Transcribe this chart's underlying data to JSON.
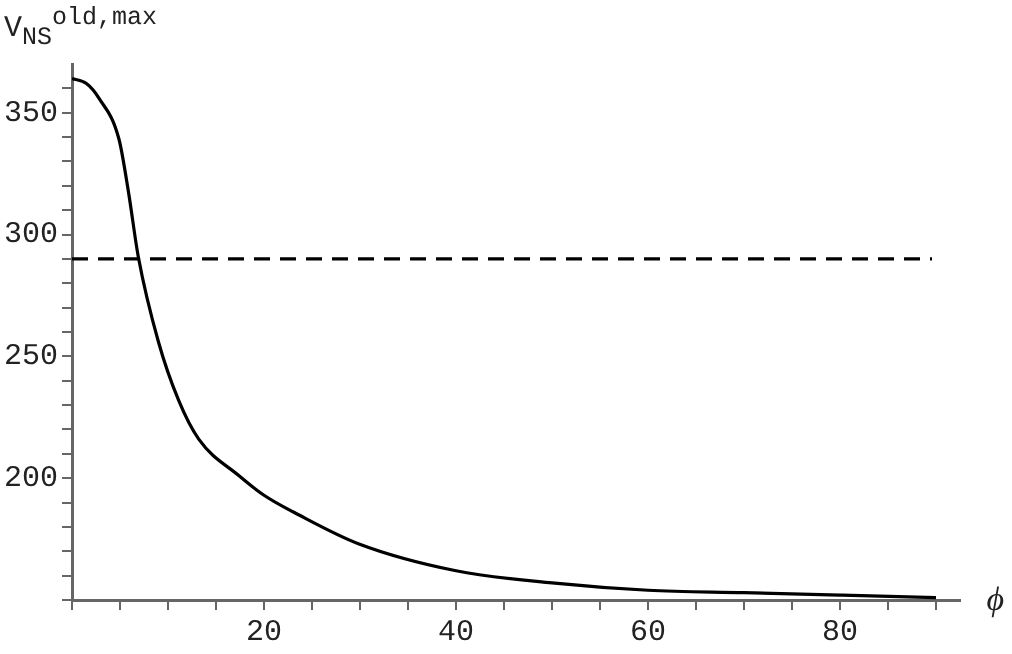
{
  "chart_data": {
    "type": "line",
    "ylabel": "V$_{NS}$$^{old,max}$",
    "xlabel": "ϕ",
    "x": [
      0,
      1.5,
      2.8,
      4.9,
      5.9,
      6.9,
      9.0,
      11.1,
      13.2,
      17.4,
      20,
      23.6,
      29.9,
      40,
      50,
      60,
      70,
      80,
      90
    ],
    "series": [
      {
        "color": "#000000",
        "values": [
          364,
          362,
          356,
          339,
          317,
          291,
          256,
          232,
          216,
          201,
          193,
          185,
          173,
          162,
          157,
          154,
          153,
          152,
          151
        ]
      }
    ],
    "xlim": [
      0,
      92.5
    ],
    "ylim": [
      150,
      370
    ],
    "xticks": [
      {
        "value": 0,
        "label": null
      },
      {
        "value": 5,
        "label": null
      },
      {
        "value": 10,
        "label": null
      },
      {
        "value": 15,
        "label": null
      },
      20,
      {
        "value": 25,
        "label": null
      },
      {
        "value": 30,
        "label": null
      },
      {
        "value": 35,
        "label": null
      },
      40,
      {
        "value": 45,
        "label": null
      },
      {
        "value": 50,
        "label": null
      },
      {
        "value": 55,
        "label": null
      },
      60,
      {
        "value": 65,
        "label": null
      },
      {
        "value": 70,
        "label": null
      },
      {
        "value": 75,
        "label": null
      },
      80,
      {
        "value": 85,
        "label": null
      },
      {
        "value": 90,
        "label": null
      }
    ],
    "yticks": [
      {
        "value": 150,
        "label": null
      },
      {
        "value": 160,
        "label": null
      },
      {
        "value": 170,
        "label": null
      },
      {
        "value": 180,
        "label": null
      },
      {
        "value": 190,
        "label": null
      },
      200,
      {
        "value": 210,
        "label": null
      },
      {
        "value": 220,
        "label": null
      },
      {
        "value": 230,
        "label": null
      },
      {
        "value": 240,
        "label": null
      },
      250,
      {
        "value": 260,
        "label": null
      },
      {
        "value": 270,
        "label": null
      },
      {
        "value": 280,
        "label": null
      },
      {
        "value": 290,
        "label": null
      },
      300,
      {
        "value": 310,
        "label": null
      },
      {
        "value": 320,
        "label": null
      },
      {
        "value": 330,
        "label": null
      },
      {
        "value": 340,
        "label": null
      },
      350,
      {
        "value": 360,
        "label": null
      }
    ],
    "ref_lines": [
      {
        "axis": "y",
        "value": 290,
        "line_style": "dashed",
        "color": "#000000"
      }
    ],
    "grid": false,
    "legend": false,
    "marker": "none",
    "line_style": "solid"
  }
}
